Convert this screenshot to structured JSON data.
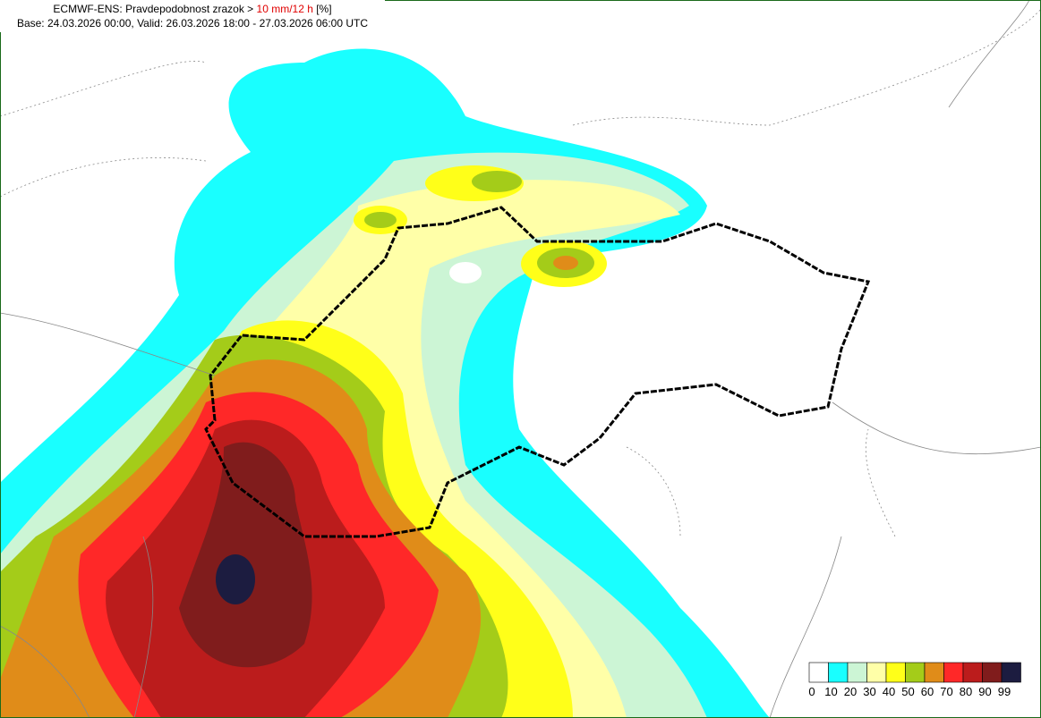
{
  "header": {
    "line1_prefix": "ECMWF-ENS: Pravdepodobnost zrazok > ",
    "line1_highlight": "10 mm/12 h",
    "line1_suffix": " [%]",
    "line2": "Base: 24.03.2026 00:00, Valid: 26.03.2026 18:00 - 27.03.2026 06:00 UTC"
  },
  "legend": {
    "items": [
      {
        "label": "0",
        "color": "#ffffff"
      },
      {
        "label": "10",
        "color": "#19ffff"
      },
      {
        "label": "20",
        "color": "#ccf5d5"
      },
      {
        "label": "30",
        "color": "#ffffa8"
      },
      {
        "label": "40",
        "color": "#ffff19"
      },
      {
        "label": "50",
        "color": "#a4cc19"
      },
      {
        "label": "60",
        "color": "#e08c19"
      },
      {
        "label": "70",
        "color": "#ff2828"
      },
      {
        "label": "80",
        "color": "#bb1c1c"
      },
      {
        "label": "90",
        "color": "#801c1c"
      },
      {
        "label": "99",
        "color": "#1c1c40"
      }
    ]
  }
}
